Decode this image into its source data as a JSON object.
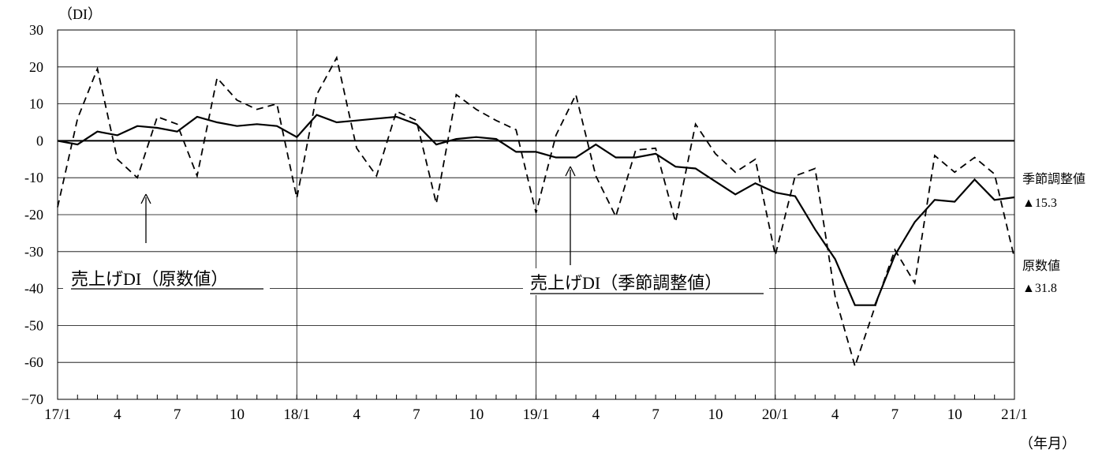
{
  "chart_data": {
    "type": "line",
    "y_unit": "（DI）",
    "x_unit": "（年月）",
    "ylim": [
      -70,
      30
    ],
    "yticks": [
      30,
      20,
      10,
      0,
      -10,
      -20,
      -30,
      -40,
      -50,
      -60,
      -70
    ],
    "ytick_labels": [
      "30",
      "20",
      "10",
      "0",
      "-10",
      "-20",
      "-30",
      "-40",
      "-50",
      "-60",
      "−70"
    ],
    "x": [
      "2017-01",
      "2017-02",
      "2017-03",
      "2017-04",
      "2017-05",
      "2017-06",
      "2017-07",
      "2017-08",
      "2017-09",
      "2017-10",
      "2017-11",
      "2017-12",
      "2018-01",
      "2018-02",
      "2018-03",
      "2018-04",
      "2018-05",
      "2018-06",
      "2018-07",
      "2018-08",
      "2018-09",
      "2018-10",
      "2018-11",
      "2018-12",
      "2019-01",
      "2019-02",
      "2019-03",
      "2019-04",
      "2019-05",
      "2019-06",
      "2019-07",
      "2019-08",
      "2019-09",
      "2019-10",
      "2019-11",
      "2019-12",
      "2020-01",
      "2020-02",
      "2020-03",
      "2020-04",
      "2020-05",
      "2020-06",
      "2020-07",
      "2020-08",
      "2020-09",
      "2020-10",
      "2020-11",
      "2020-12",
      "2021-01"
    ],
    "xtick_labels": [
      {
        "month": "2017-01",
        "label": "17/1"
      },
      {
        "month": "2017-04",
        "label": "4"
      },
      {
        "month": "2017-07",
        "label": "7"
      },
      {
        "month": "2017-10",
        "label": "10"
      },
      {
        "month": "2018-01",
        "label": "18/1"
      },
      {
        "month": "2018-04",
        "label": "4"
      },
      {
        "month": "2018-07",
        "label": "7"
      },
      {
        "month": "2018-10",
        "label": "10"
      },
      {
        "month": "2019-01",
        "label": "19/1"
      },
      {
        "month": "2019-04",
        "label": "4"
      },
      {
        "month": "2019-07",
        "label": "7"
      },
      {
        "month": "2019-10",
        "label": "10"
      },
      {
        "month": "2020-01",
        "label": "20/1"
      },
      {
        "month": "2020-04",
        "label": "4"
      },
      {
        "month": "2020-07",
        "label": "7"
      },
      {
        "month": "2020-10",
        "label": "10"
      },
      {
        "month": "2021-01",
        "label": "21/1"
      }
    ],
    "year_separators": [
      "2018-01",
      "2019-01",
      "2020-01"
    ],
    "zero_line": 0,
    "grid": true,
    "series": [
      {
        "name": "売上げDI（原数値）",
        "style": "dashed",
        "color": "#000000",
        "values": [
          -18,
          6,
          19.5,
          -5,
          -10,
          6.5,
          4.5,
          -9.5,
          17,
          11,
          8.5,
          10,
          -15.5,
          12.5,
          22.5,
          -2,
          -9.5,
          8,
          5.5,
          -17,
          12.5,
          8.5,
          5.5,
          3,
          -19.5,
          1.5,
          12.5,
          -9.5,
          -20.5,
          -2.5,
          -2,
          -22,
          4.5,
          -3.5,
          -8.5,
          -5,
          -31,
          -9.5,
          -7.5,
          -42,
          -61,
          -45,
          -29.5,
          -38.5,
          -4,
          -8.5,
          -4.5,
          -9,
          -31.8
        ]
      },
      {
        "name": "売上げDI（季節調整値）",
        "style": "solid",
        "color": "#000000",
        "values": [
          0,
          -1,
          2.5,
          1.5,
          4,
          3.5,
          2.5,
          6.5,
          5,
          4,
          4.5,
          4,
          1,
          7,
          5,
          5.5,
          6,
          6.5,
          4.5,
          -1,
          0.5,
          1,
          0.5,
          -3,
          -3,
          -4.5,
          -4.5,
          -1,
          -4.5,
          -4.5,
          -3.5,
          -7,
          -7.5,
          -11,
          -14.5,
          -11.5,
          -14,
          -15,
          -24,
          -32,
          -44.5,
          -44.5,
          -31,
          -22,
          -16,
          -16.5,
          -10.5,
          -16,
          -15.3
        ]
      }
    ],
    "annotations": {
      "raw_label": "売上げDI（原数値）",
      "sa_label": "売上げDI（季節調整値）",
      "end_sa_title": "季節調整値",
      "end_sa_value": "▲15.3",
      "end_raw_title": "原数値",
      "end_raw_value": "▲31.8"
    }
  }
}
